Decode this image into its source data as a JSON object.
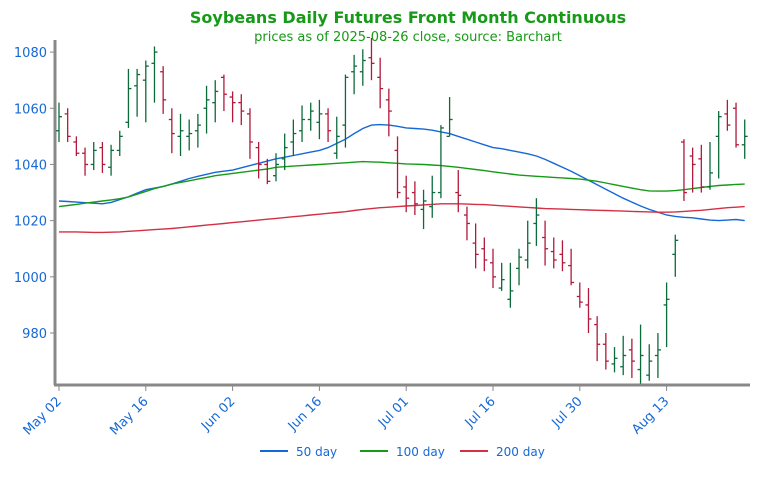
{
  "chart_data": {
    "type": "ohlc",
    "title": "Soybeans Daily Futures Front Month Continuous",
    "subtitle": "prices as of 2025-08-26 close, source: Barchart",
    "categories": [
      "May 02",
      null,
      null,
      null,
      null,
      null,
      null,
      null,
      null,
      null,
      "May 16",
      null,
      null,
      null,
      null,
      null,
      null,
      null,
      null,
      null,
      "Jun 02",
      null,
      null,
      null,
      null,
      null,
      null,
      null,
      null,
      null,
      "Jun 16",
      null,
      null,
      null,
      null,
      null,
      null,
      null,
      null,
      null,
      "Jul 01",
      null,
      null,
      null,
      null,
      null,
      null,
      null,
      null,
      null,
      "Jul 16",
      null,
      null,
      null,
      null,
      null,
      null,
      null,
      null,
      null,
      "Jul 30",
      null,
      null,
      null,
      null,
      null,
      null,
      null,
      null,
      null,
      "Aug 13",
      null,
      null,
      null,
      null,
      null,
      null,
      null,
      null,
      null
    ],
    "open": [
      1052,
      1058,
      1048,
      1044,
      1040,
      1046,
      1039,
      1045,
      1055,
      1068,
      1070,
      1076,
      1073,
      1056,
      1050,
      1050,
      1052,
      1060,
      1062,
      1071,
      1064,
      1062,
      1058,
      1046,
      1040,
      1036,
      1042,
      1048,
      1052,
      1056,
      1055,
      1058,
      1044,
      1054,
      1073,
      1073,
      1078,
      1071,
      1063,
      1045,
      1032,
      1030,
      1024,
      1025,
      1030,
      1050,
      1030,
      1022,
      1012,
      1010,
      1005,
      996,
      992,
      1003,
      1006,
      1019,
      1014,
      1009,
      1008,
      1004,
      993,
      990,
      983,
      976,
      969,
      968,
      974,
      967,
      965,
      972,
      990,
      1008,
      1048,
      1043,
      1042,
      1032,
      1050,
      1058,
      1060,
      1047
    ],
    "high": [
      1062,
      1060,
      1050,
      1046,
      1048,
      1048,
      1047,
      1052,
      1074,
      1074,
      1077,
      1082,
      1075,
      1060,
      1058,
      1056,
      1058,
      1068,
      1070,
      1072,
      1066,
      1065,
      1060,
      1048,
      1042,
      1044,
      1051,
      1056,
      1061,
      1062,
      1063,
      1060,
      1057,
      1072,
      1079,
      1081,
      1085,
      1078,
      1067,
      1050,
      1036,
      1034,
      1031,
      1036,
      1054,
      1064,
      1038,
      1025,
      1019,
      1014,
      1010,
      1005,
      1005,
      1010,
      1020,
      1028,
      1020,
      1014,
      1013,
      1010,
      998,
      996,
      986,
      980,
      975,
      979,
      978,
      983,
      976,
      980,
      998,
      1015,
      1049,
      1046,
      1047,
      1048,
      1059,
      1063,
      1062,
      1056
    ],
    "low": [
      1048,
      1048,
      1043,
      1036,
      1038,
      1037,
      1036,
      1043,
      1053,
      1057,
      1055,
      1062,
      1058,
      1044,
      1043,
      1045,
      1046,
      1051,
      1055,
      1059,
      1055,
      1054,
      1042,
      1035,
      1033,
      1034,
      1038,
      1043,
      1048,
      1052,
      1049,
      1048,
      1042,
      1046,
      1065,
      1068,
      1070,
      1060,
      1050,
      1028,
      1023,
      1022,
      1017,
      1021,
      1028,
      1050,
      1023,
      1013,
      1003,
      1002,
      996,
      995,
      989,
      997,
      1003,
      1011,
      1004,
      1003,
      1002,
      997,
      989,
      980,
      970,
      967,
      966,
      965,
      964,
      962,
      963,
      964,
      975,
      1000,
      1027,
      1030,
      1030,
      1031,
      1035,
      1052,
      1046,
      1042
    ],
    "close": [
      1057,
      1050,
      1044,
      1040,
      1045,
      1040,
      1045,
      1050,
      1067,
      1072,
      1075,
      1080,
      1063,
      1051,
      1052,
      1051,
      1054,
      1063,
      1066,
      1065,
      1062,
      1059,
      1048,
      1040,
      1034,
      1040,
      1046,
      1051,
      1056,
      1059,
      1058,
      1052,
      1050,
      1071,
      1075,
      1077,
      1076,
      1067,
      1059,
      1030,
      1028,
      1026,
      1027,
      1030,
      1053,
      1056,
      1029,
      1019,
      1008,
      1006,
      1000,
      999,
      995,
      1007,
      1012,
      1022,
      1010,
      1006,
      1005,
      998,
      991,
      985,
      976,
      970,
      971,
      972,
      970,
      972,
      970,
      974,
      992,
      1013,
      1030,
      1040,
      1032,
      1037,
      1057,
      1054,
      1047,
      1050
    ],
    "up_color": "#0b6b3a",
    "down_color": "#b3193a",
    "series": [
      {
        "name": "50 day",
        "color": "#1668d6",
        "values": [
          1027,
          1026.8,
          1026.6,
          1026.4,
          1026.2,
          1026,
          1026.5,
          1027.5,
          1028.5,
          1029.8,
          1031,
          1031.6,
          1032.2,
          1033,
          1034,
          1035,
          1035.8,
          1036.5,
          1037.2,
          1037.6,
          1038,
          1038.8,
          1039.6,
          1040.4,
          1041.2,
          1042,
          1042.6,
          1043.2,
          1043.8,
          1044.4,
          1045,
          1046,
          1047.5,
          1049,
          1051,
          1052.8,
          1054,
          1054.2,
          1054,
          1053.6,
          1053,
          1052.8,
          1052.6,
          1052.2,
          1051.6,
          1051,
          1050,
          1049,
          1048,
          1047,
          1046,
          1045.6,
          1045,
          1044.4,
          1043.8,
          1043,
          1041.8,
          1040.4,
          1039,
          1037.6,
          1036,
          1034.4,
          1032.8,
          1031.2,
          1029.6,
          1028,
          1026.6,
          1025.2,
          1024,
          1023,
          1022,
          1021.5,
          1021.2,
          1021,
          1020.6,
          1020.2,
          1020,
          1020.2,
          1020.4,
          1020
        ]
      },
      {
        "name": "100 day",
        "color": "#179a17",
        "values": [
          1025,
          1025.4,
          1025.8,
          1026.2,
          1026.6,
          1027,
          1027.4,
          1027.8,
          1028.4,
          1029.4,
          1030.4,
          1031.4,
          1032.2,
          1033,
          1033.6,
          1034.2,
          1034.8,
          1035.4,
          1036,
          1036.4,
          1036.8,
          1037.2,
          1037.6,
          1038,
          1038.4,
          1039,
          1039.2,
          1039.4,
          1039.6,
          1039.8,
          1040,
          1040.2,
          1040.4,
          1040.6,
          1040.8,
          1041,
          1040.9,
          1040.8,
          1040.6,
          1040.4,
          1040.2,
          1040.1,
          1040,
          1039.8,
          1039.6,
          1039.3,
          1039,
          1038.6,
          1038.2,
          1037.8,
          1037.4,
          1037,
          1036.6,
          1036.2,
          1036,
          1035.8,
          1035.6,
          1035.4,
          1035.2,
          1035,
          1034.8,
          1034.4,
          1034,
          1033.4,
          1032.8,
          1032.2,
          1031.6,
          1031,
          1030.6,
          1030.5,
          1030.5,
          1030.7,
          1031,
          1031.4,
          1031.8,
          1032.2,
          1032.5,
          1032.7,
          1032.9,
          1033
        ]
      },
      {
        "name": "200 day",
        "color": "#d32f45",
        "values": [
          1016,
          1016,
          1016,
          1015.9,
          1015.8,
          1015.8,
          1015.9,
          1016,
          1016.2,
          1016.4,
          1016.6,
          1016.8,
          1017,
          1017.2,
          1017.5,
          1017.8,
          1018.1,
          1018.4,
          1018.7,
          1019,
          1019.3,
          1019.6,
          1019.9,
          1020.2,
          1020.5,
          1020.8,
          1021.1,
          1021.4,
          1021.7,
          1022,
          1022.3,
          1022.6,
          1022.9,
          1023.2,
          1023.6,
          1024,
          1024.3,
          1024.6,
          1024.8,
          1025,
          1025.2,
          1025.4,
          1025.6,
          1025.8,
          1026,
          1026,
          1026,
          1025.9,
          1025.8,
          1025.7,
          1025.5,
          1025.3,
          1025.1,
          1024.9,
          1024.7,
          1024.5,
          1024.3,
          1024.2,
          1024.1,
          1024,
          1023.9,
          1023.8,
          1023.7,
          1023.6,
          1023.5,
          1023.4,
          1023.3,
          1023.2,
          1023.1,
          1023,
          1023,
          1023.1,
          1023.3,
          1023.5,
          1023.7,
          1024,
          1024.3,
          1024.6,
          1024.8,
          1025
        ]
      }
    ],
    "ylim": [
      961.5,
      1084.3
    ],
    "yticks": [
      980,
      1000,
      1020,
      1040,
      1060,
      1080
    ],
    "grid": false,
    "legend": "bottom"
  }
}
